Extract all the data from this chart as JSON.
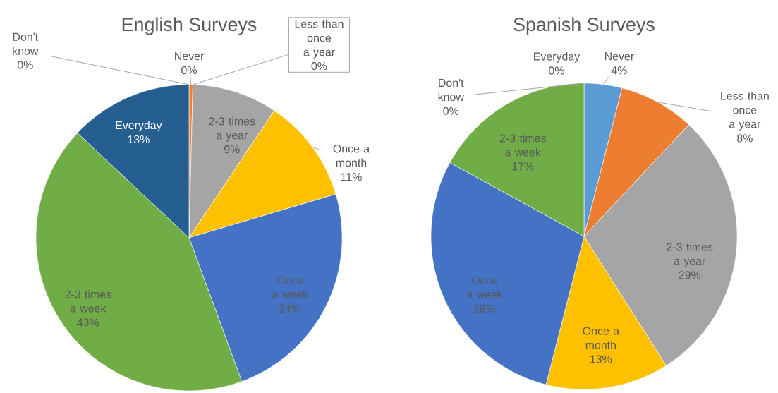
{
  "chart_data": [
    {
      "type": "pie",
      "title": "English Surveys",
      "categories": [
        "Never",
        "Less than once a year",
        "2-3 times a year",
        "Once a month",
        "Once a week",
        "2-3 times a week",
        "Everyday",
        "Don't know"
      ],
      "values": [
        0.4,
        0,
        9,
        11,
        24,
        42.6,
        13,
        0
      ],
      "value_labels": [
        "0%",
        "0%",
        "9%",
        "11%",
        "24%",
        "43%",
        "13%",
        "0%"
      ],
      "colors": [
        "#ed7d31",
        "#a5a5a5",
        "#a5a5a5",
        "#ffc000",
        "#4472c4",
        "#70ad47",
        "#255e91",
        "#9e480e"
      ]
    },
    {
      "type": "pie",
      "title": "Spanish Surveys",
      "categories": [
        "Everyday",
        "Never",
        "Less than once a year",
        "2-3 times a year",
        "Once a month",
        "Once a week",
        "2-3 times a week",
        "Don't know"
      ],
      "values": [
        0,
        4,
        8,
        29,
        13,
        29,
        17,
        0
      ],
      "value_labels": [
        "0%",
        "4%",
        "8%",
        "29%",
        "13%",
        "29%",
        "17%",
        "0%"
      ],
      "colors": [
        "#255e91",
        "#5b9bd5",
        "#ed7d31",
        "#a5a5a5",
        "#ffc000",
        "#4472c4",
        "#70ad47",
        "#9e480e"
      ]
    }
  ]
}
